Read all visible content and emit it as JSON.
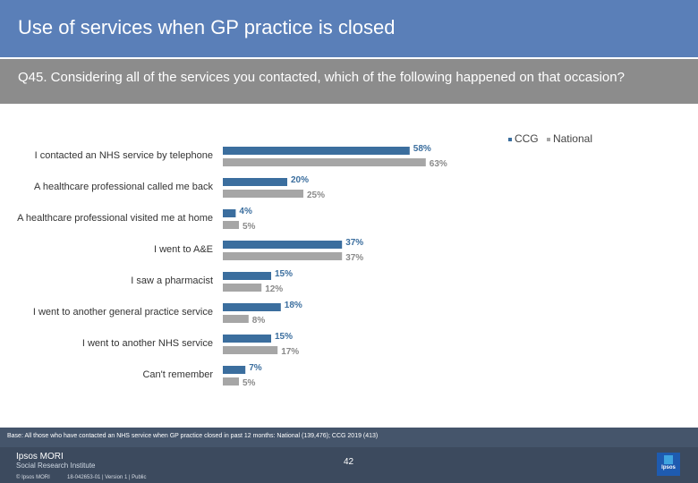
{
  "header": {
    "title": "Use of services when GP practice is closed",
    "question": "Q45. Considering all of the services you contacted, which of the following happened on that occasion?"
  },
  "chart_data": {
    "type": "bar",
    "orientation": "horizontal",
    "categories": [
      "I contacted an NHS service by telephone",
      "A healthcare professional called me back",
      "A healthcare professional visited me at home",
      "I went to A&E",
      "I saw a pharmacist",
      "I went to another general practice service",
      "I  went to another NHS service",
      "Can't remember"
    ],
    "series": [
      {
        "name": "CCG",
        "color": "#3b6e9e",
        "values": [
          58,
          20,
          4,
          37,
          15,
          18,
          15,
          7
        ],
        "labels": [
          "58%",
          "20%",
          "4%",
          "37%",
          "15%",
          "18%",
          "15%",
          "7%"
        ]
      },
      {
        "name": "National",
        "color": "#a6a6a6",
        "values": [
          63,
          25,
          5,
          37,
          12,
          8,
          17,
          5
        ],
        "labels": [
          "63%",
          "25%",
          "5%",
          "37%",
          "12%",
          "8%",
          "17%",
          "5%"
        ]
      }
    ],
    "xlim": [
      0,
      100
    ],
    "legend_position": "top-right"
  },
  "legend": {
    "ccg": "CCG",
    "national": "National"
  },
  "footer": {
    "base": "Base: All those who have contacted an NHS service when GP practice closed in past 12 months: National (139,476); CCG 2019 (413)",
    "page": "42",
    "brand_name": "Ipsos MORI",
    "brand_sub": "Social Research Institute",
    "copyright": "© Ipsos MORI",
    "job": "18-042653-01 | Version 1 | Public",
    "logo_text": "Ipsos"
  }
}
